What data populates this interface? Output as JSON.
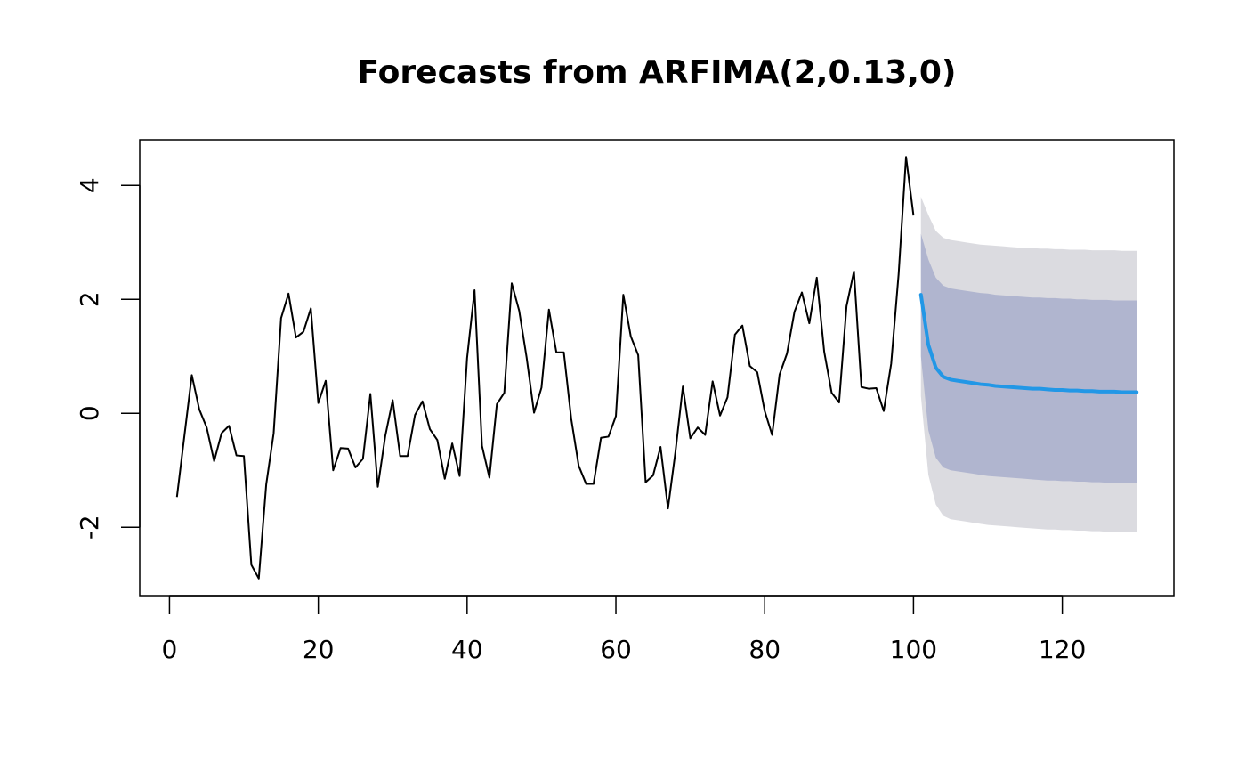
{
  "chart_data": {
    "type": "line",
    "title": "Forecasts from ARFIMA(2,0.13,0)",
    "xlabel": "",
    "ylabel": "",
    "xlim": [
      -4,
      135
    ],
    "ylim": [
      -3.2,
      4.8
    ],
    "grid": false,
    "x_ticks": [
      0,
      20,
      40,
      60,
      80,
      100,
      120
    ],
    "y_ticks": [
      -2,
      0,
      2,
      4
    ],
    "x_tick_labels": [
      "0",
      "20",
      "40",
      "60",
      "80",
      "100",
      "120"
    ],
    "y_tick_labels": [
      "-2",
      "0",
      "2",
      "4"
    ],
    "colors": {
      "observed": "#000000",
      "forecast": "#2297e6",
      "band80": "#b0b5cf",
      "band95": "#dbdbe0"
    },
    "observed": {
      "x_start": 1,
      "values": [
        -1.47,
        -0.4,
        0.67,
        0.07,
        -0.25,
        -0.84,
        -0.35,
        -0.22,
        -0.74,
        -0.75,
        -2.66,
        -2.9,
        -1.25,
        -0.35,
        1.67,
        2.1,
        1.33,
        1.43,
        1.84,
        0.18,
        0.57,
        -1.0,
        -0.61,
        -0.62,
        -0.95,
        -0.8,
        0.34,
        -1.29,
        -0.4,
        0.23,
        -0.75,
        -0.75,
        -0.03,
        0.21,
        -0.28,
        -0.47,
        -1.15,
        -0.53,
        -1.1,
        0.97,
        2.16,
        -0.57,
        -1.13,
        0.16,
        0.36,
        2.28,
        1.8,
        0.98,
        0.01,
        0.45,
        1.82,
        1.07,
        1.07,
        -0.1,
        -0.92,
        -1.24,
        -1.24,
        -0.43,
        -0.41,
        -0.05,
        2.08,
        1.35,
        1.02,
        -1.21,
        -1.09,
        -0.59,
        -1.67,
        -0.68,
        0.47,
        -0.44,
        -0.25,
        -0.38,
        0.56,
        -0.04,
        0.28,
        1.38,
        1.54,
        0.83,
        0.72,
        0.04,
        -0.38,
        0.68,
        1.05,
        1.78,
        2.12,
        1.58,
        2.38,
        1.08,
        0.36,
        0.19,
        1.88,
        2.49,
        0.46,
        0.43,
        0.44,
        0.04,
        0.87,
        2.44,
        4.5,
        3.47
      ]
    },
    "forecast": {
      "x_start": 101,
      "mean": [
        2.08,
        1.2,
        0.8,
        0.64,
        0.59,
        0.57,
        0.55,
        0.53,
        0.51,
        0.5,
        0.48,
        0.47,
        0.46,
        0.45,
        0.44,
        0.43,
        0.43,
        0.42,
        0.41,
        0.41,
        0.4,
        0.4,
        0.39,
        0.39,
        0.38,
        0.38,
        0.38,
        0.37,
        0.37,
        0.37
      ],
      "lo80": [
        1.0,
        -0.3,
        -0.78,
        -0.95,
        -1.0,
        -1.02,
        -1.04,
        -1.06,
        -1.08,
        -1.1,
        -1.11,
        -1.12,
        -1.13,
        -1.14,
        -1.15,
        -1.16,
        -1.17,
        -1.18,
        -1.18,
        -1.19,
        -1.19,
        -1.2,
        -1.2,
        -1.21,
        -1.21,
        -1.22,
        -1.22,
        -1.23,
        -1.23,
        -1.23
      ],
      "hi80": [
        3.15,
        2.7,
        2.38,
        2.24,
        2.19,
        2.17,
        2.15,
        2.13,
        2.11,
        2.1,
        2.08,
        2.07,
        2.06,
        2.05,
        2.04,
        2.03,
        2.03,
        2.02,
        2.02,
        2.01,
        2.01,
        2.0,
        2.0,
        1.99,
        1.99,
        1.99,
        1.98,
        1.98,
        1.98,
        1.98
      ],
      "lo95": [
        0.3,
        -1.08,
        -1.6,
        -1.8,
        -1.86,
        -1.88,
        -1.9,
        -1.92,
        -1.94,
        -1.96,
        -1.97,
        -1.98,
        -1.99,
        -2.0,
        -2.01,
        -2.02,
        -2.03,
        -2.04,
        -2.04,
        -2.05,
        -2.05,
        -2.06,
        -2.06,
        -2.07,
        -2.07,
        -2.08,
        -2.08,
        -2.09,
        -2.09,
        -2.09
      ],
      "hi95": [
        3.8,
        3.48,
        3.2,
        3.08,
        3.04,
        3.02,
        3.0,
        2.98,
        2.96,
        2.95,
        2.94,
        2.93,
        2.92,
        2.91,
        2.9,
        2.9,
        2.89,
        2.89,
        2.88,
        2.88,
        2.87,
        2.87,
        2.87,
        2.86,
        2.86,
        2.86,
        2.86,
        2.85,
        2.85,
        2.85
      ]
    }
  }
}
